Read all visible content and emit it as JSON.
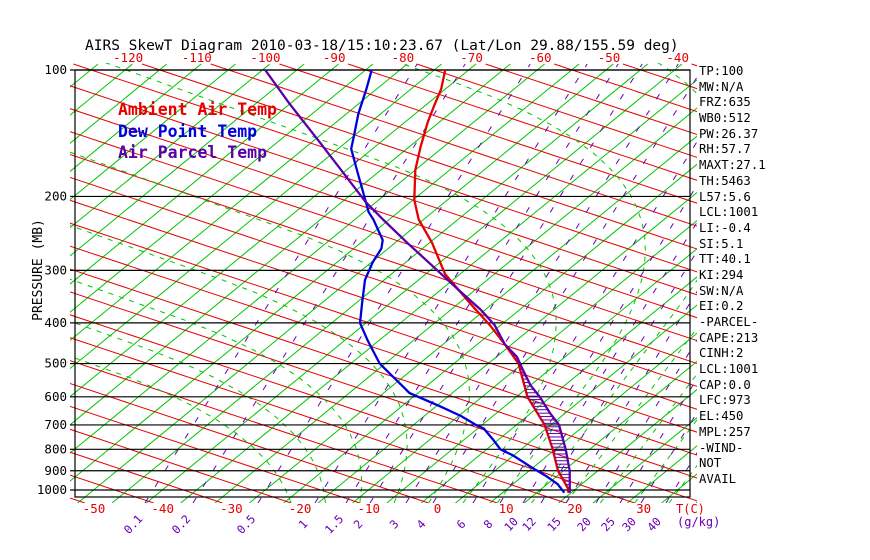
{
  "title": "AIRS SkewT Diagram 2010-03-18/15:10:23.67 (Lat/Lon 29.88/155.59 deg)",
  "colors": {
    "isotherm_green": "#00c400",
    "adiabat_red": "#e60000",
    "moist_green_dashed": "#00c400",
    "mixing_purple_dashed": "#6a00b8",
    "ambient_red": "#e60000",
    "dewpoint_blue": "#0000dd",
    "parcel_purple": "#5a00aa",
    "axis_black": "#000000",
    "temp_label_red": "#e60000"
  },
  "stats": [
    "TP:100",
    "MW:N/A",
    "FRZ:635",
    "WB0:512",
    "PW:26.37",
    "RH:57.7",
    "MAXT:27.1",
    "TH:5463",
    "L57:5.6",
    "LCL:1001",
    "LI:-0.4",
    "SI:5.1",
    "TT:40.1",
    "KI:294",
    "SW:N/A",
    "EI:0.2",
    "-PARCEL-",
    "CAPE:213",
    "CINH:2",
    "LCL:1001",
    "CAP:0.0",
    "LFC:973",
    "EL:450",
    "MPL:257",
    "-WIND-",
    "NOT",
    "AVAIL"
  ],
  "chart_data": {
    "type": "line",
    "subtype": "skewt-log-p-sounding",
    "title": "AIRS SkewT Diagram 2010-03-18/15:10:23.67 (Lat/Lon 29.88/155.59 deg)",
    "pressure_axis_label": "PRESSURE (MB)",
    "pressure_ticks": [
      100,
      200,
      300,
      400,
      500,
      600,
      700,
      800,
      900,
      1000
    ],
    "pressure_range": [
      100,
      1047
    ],
    "top_temp_ticks": [
      -120,
      -110,
      -100,
      -90,
      -80,
      -70,
      -60,
      -50,
      -40
    ],
    "bottom_temp_ticks": [
      -50,
      -40,
      -30,
      -20,
      -10,
      0,
      10,
      20,
      30
    ],
    "temp_unit_label": "T(C)",
    "mixing_ratio_ticks": [
      0.1,
      0.2,
      0.5,
      1,
      1.5,
      2,
      3,
      4,
      6,
      8,
      10,
      12,
      15,
      20,
      25,
      30,
      40
    ],
    "mixing_unit_label": "(g/kg)",
    "grid": true,
    "legend_position": "top-left-inside",
    "series": [
      {
        "name": "Ambient Air Temp",
        "colorKey": "ambient_red",
        "points": [
          [
            100,
            -73.4
          ],
          [
            111,
            -70.6
          ],
          [
            122,
            -68.6
          ],
          [
            133,
            -66.7
          ],
          [
            152,
            -63.4
          ],
          [
            173,
            -60.0
          ],
          [
            204,
            -54.8
          ],
          [
            227,
            -50.7
          ],
          [
            258,
            -44.6
          ],
          [
            306,
            -37.2
          ],
          [
            359,
            -28.4
          ],
          [
            405,
            -21.6
          ],
          [
            450,
            -16.0
          ],
          [
            500,
            -10.6
          ],
          [
            600,
            -3.4
          ],
          [
            700,
            4.1
          ],
          [
            800,
            9.6
          ],
          [
            900,
            14.2
          ],
          [
            1000,
            19.2
          ],
          [
            1015,
            19.5
          ]
        ]
      },
      {
        "name": "Dew Point Temp",
        "colorKey": "dewpoint_blue",
        "points": [
          [
            100,
            -84.1
          ],
          [
            111,
            -81.5
          ],
          [
            127,
            -78.3
          ],
          [
            144,
            -74.9
          ],
          [
            154,
            -73.1
          ],
          [
            173,
            -68.5
          ],
          [
            218,
            -59.3
          ],
          [
            227,
            -57.3
          ],
          [
            254,
            -52.3
          ],
          [
            266,
            -51.0
          ],
          [
            287,
            -49.8
          ],
          [
            316,
            -47.8
          ],
          [
            359,
            -44.1
          ],
          [
            400,
            -40.9
          ],
          [
            440,
            -36.7
          ],
          [
            500,
            -30.8
          ],
          [
            588,
            -21.2
          ],
          [
            633,
            -14.3
          ],
          [
            667,
            -9.6
          ],
          [
            700,
            -5.9
          ],
          [
            714,
            -4.1
          ],
          [
            760,
            -0.7
          ],
          [
            800,
            2.0
          ],
          [
            827,
            4.9
          ],
          [
            878,
            9.3
          ],
          [
            930,
            13.7
          ],
          [
            968,
            16.5
          ],
          [
            1015,
            19.0
          ]
        ]
      },
      {
        "name": "Air Parcel Temp",
        "colorKey": "parcel_purple",
        "points": [
          [
            100,
            -99.6
          ],
          [
            120,
            -90.2
          ],
          [
            149,
            -78.7
          ],
          [
            178,
            -69.3
          ],
          [
            206,
            -61.6
          ],
          [
            227,
            -55.9
          ],
          [
            258,
            -48.2
          ],
          [
            294,
            -40.2
          ],
          [
            336,
            -32.0
          ],
          [
            372,
            -25.7
          ],
          [
            405,
            -20.9
          ],
          [
            450,
            -16.0
          ],
          [
            482,
            -12.0
          ],
          [
            518,
            -8.8
          ],
          [
            563,
            -5.0
          ],
          [
            600,
            -1.6
          ],
          [
            655,
            2.7
          ],
          [
            700,
            6.2
          ],
          [
            800,
            11.5
          ],
          [
            900,
            15.9
          ],
          [
            1015,
            19.8
          ]
        ]
      }
    ],
    "cape_hatch_pressure_range": [
      452,
      985
    ],
    "annotations": {
      "equilibrium_level_mb": 450,
      "lfc_mb": 973,
      "cape_j": 213
    }
  }
}
